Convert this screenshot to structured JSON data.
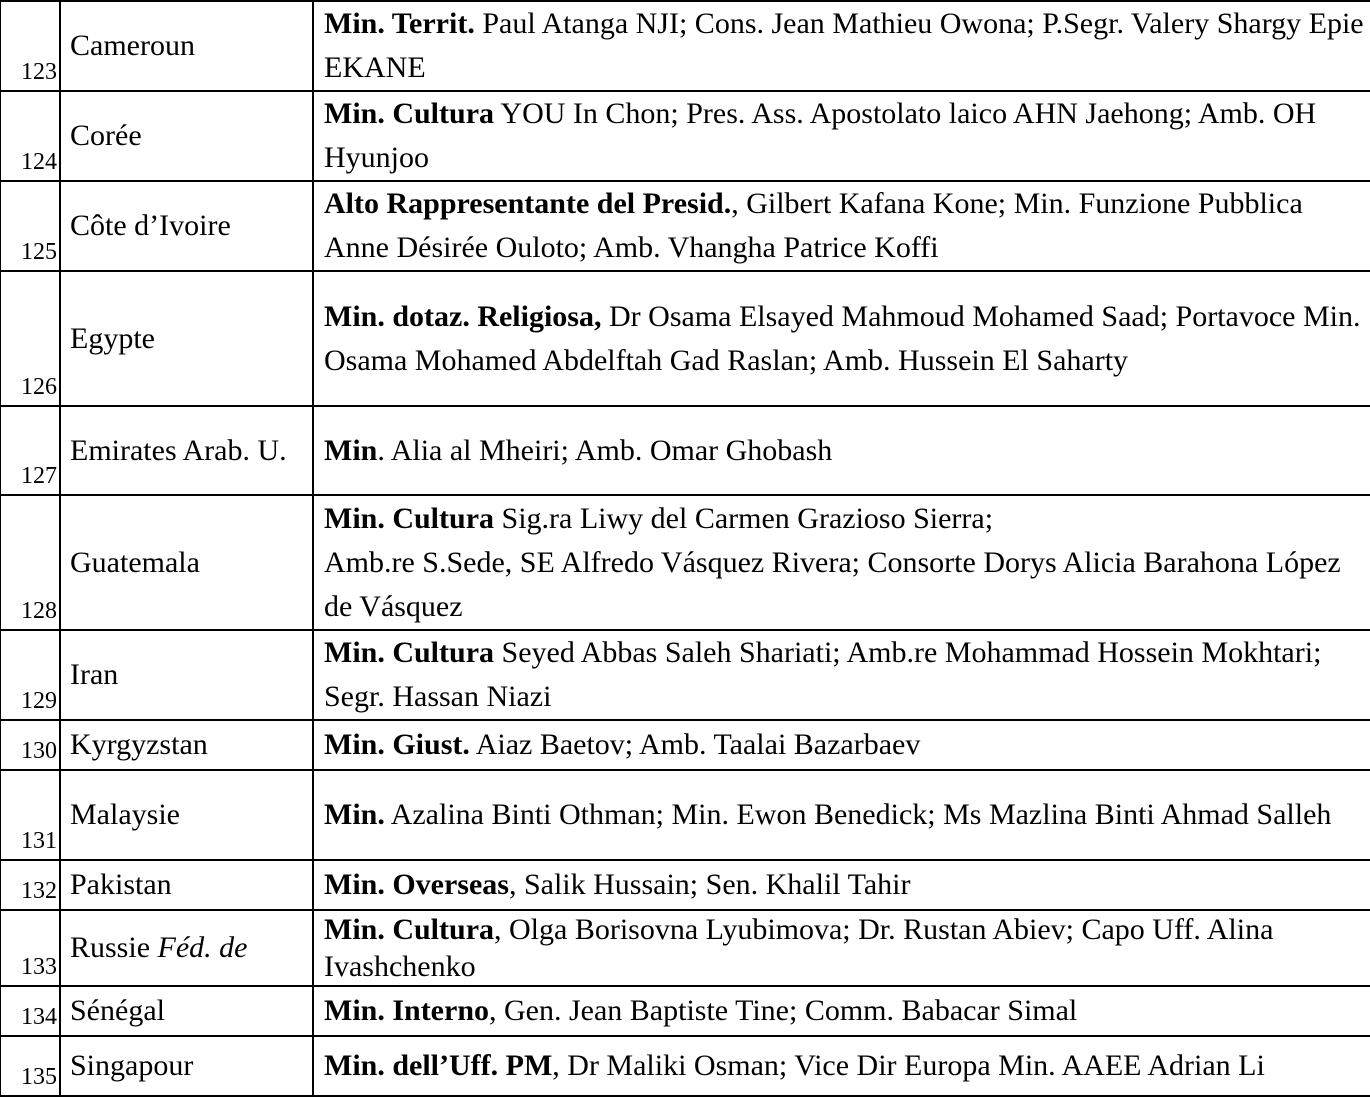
{
  "rows": [
    {
      "num": "123",
      "country": "Cameroun",
      "country_italic": "",
      "bold": "Min. Territ.",
      "text": " Paul Atanga NJI; Cons. Jean Mathieu Owona; P.Segr. Valery Shargy Epie EKANE"
    },
    {
      "num": "124",
      "country": "Corée",
      "country_italic": "",
      "bold": "Min. Cultura",
      "text": " YOU In Chon; Pres. Ass. Apostolato laico AHN Jaehong; Amb. OH Hyunjoo"
    },
    {
      "num": "125",
      "country": "Côte d’Ivoire",
      "country_italic": "",
      "bold": "Alto Rappresentante del Presid.",
      "text": ", Gilbert Kafana Kone; Min. Funzione Pubblica Anne Désirée Ouloto; Amb. Vhangha Patrice Koffi"
    },
    {
      "num": "126",
      "country": "Egypte",
      "country_italic": "",
      "bold": "Min. dotaz. Religiosa,",
      "text": " Dr Osama Elsayed Mahmoud Mohamed Saad; Portavoce Min. Osama Mohamed Abdelftah Gad Raslan; Amb. Hussein El Saharty"
    },
    {
      "num": "127",
      "country": "Emirates Arab. U.",
      "country_italic": "",
      "bold": "Min",
      "text": ". Alia al Mheiri; Amb. Omar Ghobash"
    },
    {
      "num": "128",
      "country": "Guatemala",
      "country_italic": "",
      "bold": "Min. Cultura",
      "text": " Sig.ra Liwy del Carmen Grazioso Sierra;\nAmb.re S.Sede, SE Alfredo Vásquez Rivera; Consorte Dorys Alicia Barahona López de Vásquez"
    },
    {
      "num": "129",
      "country": "Iran",
      "country_italic": "",
      "bold": "Min. Cultura",
      "text": " Seyed Abbas Saleh Shariati; Amb.re Mohammad Hossein Mokhtari; Segr. Hassan Niazi"
    },
    {
      "num": "130",
      "country": "Kyrgyzstan",
      "country_italic": "",
      "bold": "Min. Giust.",
      "text": "  Aiaz Baetov; Amb. Taalai Bazarbaev"
    },
    {
      "num": "131",
      "country": "Malaysie",
      "country_italic": "",
      "bold": "Min.",
      "text": " Azalina Binti Othman; Min. Ewon Benedick; Ms Mazlina Binti Ahmad Salleh"
    },
    {
      "num": "132",
      "country": "Pakistan",
      "country_italic": "",
      "bold": "Min. Overseas",
      "text": ", Salik Hussain; Sen. Khalil Tahir"
    },
    {
      "num": "133",
      "country": "Russie ",
      "country_italic": "Féd. de",
      "bold": "Min. Cultura",
      "text": ", Olga Borisovna Lyubimova; Dr. Rustan Abiev; Capo Uff. Alina Ivashchenko"
    },
    {
      "num": "134",
      "country": "Sénégal",
      "country_italic": "",
      "bold": "Min. Interno",
      "text": ", Gen. Jean Baptiste Tine; Comm. Babacar Simal"
    },
    {
      "num": "135",
      "country": "Singapour",
      "country_italic": "",
      "bold": "Min. dell’Uff. PM",
      "text": ", Dr Maliki Osman; Vice Dir Europa Min. AAEE Adrian Li"
    }
  ]
}
